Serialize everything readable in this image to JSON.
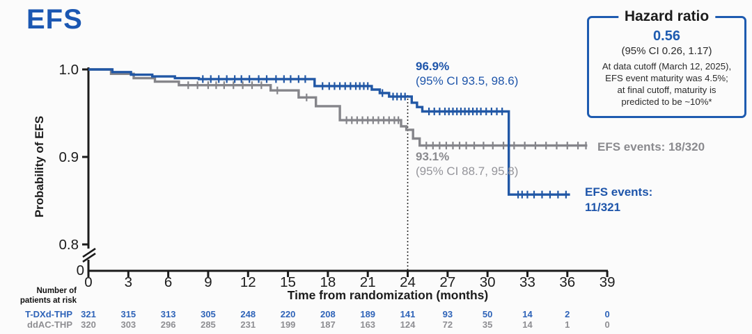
{
  "title": "EFS",
  "hazard_box": {
    "title": "Hazard ratio",
    "value": "0.56",
    "ci": "(95% CI 0.26, 1.17)",
    "note_lines": [
      "At data cutoff (March 12, 2025),",
      "EFS event maturity was 4.5%;",
      "at final cutoff, maturity is",
      "predicted to be ~10%*"
    ]
  },
  "chart_data": {
    "type": "line",
    "subtype": "kaplan-meier-step",
    "title": "EFS",
    "xlabel": "Time from randomization (months)",
    "ylabel": "Probability of EFS",
    "x_ticks": [
      0,
      3,
      6,
      9,
      12,
      15,
      18,
      21,
      24,
      27,
      30,
      33,
      36,
      39
    ],
    "y_ticks": [
      1.0,
      0.9,
      0.8
    ],
    "y_tick_labels": [
      "1.0",
      "0.9",
      "0.8"
    ],
    "y_axis_break_label": "0",
    "ylim_shown": [
      0.8,
      1.0
    ],
    "xlim": [
      0,
      39
    ],
    "grid": false,
    "reference_line_month": 24,
    "series": [
      {
        "name": "T-DXd-THP",
        "color": "#2157a5",
        "landmark_value": "96.9%",
        "landmark_ci": "(95% CI 93.5, 98.6)",
        "events_label_line1": "EFS events:",
        "events_label_line2": "11/321",
        "steps": [
          [
            0,
            1.0
          ],
          [
            1.8,
            1.0
          ],
          [
            1.8,
            0.997
          ],
          [
            3.2,
            0.997
          ],
          [
            3.2,
            0.994
          ],
          [
            4.8,
            0.994
          ],
          [
            4.8,
            0.992
          ],
          [
            6.5,
            0.992
          ],
          [
            6.5,
            0.99
          ],
          [
            8.3,
            0.99
          ],
          [
            8.3,
            0.989
          ],
          [
            17.0,
            0.989
          ],
          [
            17.0,
            0.981
          ],
          [
            21.3,
            0.981
          ],
          [
            21.3,
            0.977
          ],
          [
            21.9,
            0.977
          ],
          [
            21.9,
            0.973
          ],
          [
            22.6,
            0.973
          ],
          [
            22.6,
            0.969
          ],
          [
            24.3,
            0.969
          ],
          [
            24.3,
            0.962
          ],
          [
            24.7,
            0.962
          ],
          [
            24.7,
            0.957
          ],
          [
            25.1,
            0.957
          ],
          [
            25.1,
            0.952
          ],
          [
            31.6,
            0.952
          ],
          [
            31.6,
            0.857
          ],
          [
            36.2,
            0.857
          ]
        ],
        "censor_months": [
          8.6,
          9.2,
          9.8,
          10.4,
          11.0,
          11.5,
          12.1,
          12.8,
          13.4,
          14.1,
          14.7,
          15.2,
          15.8,
          16.3,
          17.6,
          18.1,
          18.5,
          18.9,
          19.3,
          19.7,
          20.1,
          20.4,
          20.7,
          21.0,
          22.1,
          22.9,
          23.2,
          23.5,
          23.8,
          25.6,
          26.0,
          26.4,
          26.8,
          27.1,
          27.4,
          27.7,
          28.0,
          28.3,
          28.6,
          28.9,
          29.2,
          29.5,
          29.9,
          30.3,
          30.7,
          31.1,
          32.3,
          32.6,
          33.0,
          33.5,
          34.1,
          34.7,
          35.3,
          35.9
        ]
      },
      {
        "name": "ddAC-THP",
        "color": "#85858a",
        "landmark_value": "93.1%",
        "landmark_ci": "(95% CI 88.7, 95.8)",
        "events_label": "EFS events: 18/320",
        "steps": [
          [
            0,
            1.0
          ],
          [
            1.7,
            1.0
          ],
          [
            1.7,
            0.995
          ],
          [
            3.4,
            0.995
          ],
          [
            3.4,
            0.99
          ],
          [
            5.0,
            0.99
          ],
          [
            5.0,
            0.986
          ],
          [
            6.8,
            0.986
          ],
          [
            6.8,
            0.982
          ],
          [
            13.7,
            0.982
          ],
          [
            13.7,
            0.976
          ],
          [
            15.8,
            0.976
          ],
          [
            15.8,
            0.968
          ],
          [
            17.1,
            0.968
          ],
          [
            17.1,
            0.958
          ],
          [
            18.9,
            0.958
          ],
          [
            18.9,
            0.942
          ],
          [
            23.5,
            0.942
          ],
          [
            23.5,
            0.935
          ],
          [
            23.9,
            0.935
          ],
          [
            23.9,
            0.931
          ],
          [
            24.4,
            0.931
          ],
          [
            24.4,
            0.921
          ],
          [
            24.9,
            0.921
          ],
          [
            24.9,
            0.913
          ],
          [
            37.5,
            0.913
          ]
        ],
        "censor_months": [
          7.5,
          8.2,
          9.0,
          9.6,
          10.2,
          10.9,
          11.6,
          12.3,
          13.0,
          14.2,
          16.4,
          19.4,
          19.8,
          20.2,
          20.6,
          21.0,
          21.4,
          21.8,
          22.2,
          22.6,
          23.0,
          23.3,
          25.4,
          25.9,
          26.4,
          26.9,
          27.4,
          27.9,
          28.4,
          29.0,
          29.7,
          30.4,
          31.2,
          32.0,
          32.8,
          33.6,
          34.4,
          35.2,
          36.0,
          36.8,
          37.4
        ]
      }
    ]
  },
  "risk_table": {
    "header_line1": "Number of",
    "header_line2": "patients at risk",
    "months": [
      0,
      3,
      6,
      9,
      12,
      15,
      18,
      21,
      24,
      27,
      30,
      33,
      36,
      39
    ],
    "rows": [
      {
        "name": "T-DXd-THP",
        "color": "#2e63b8",
        "values": [
          "321",
          "315",
          "313",
          "305",
          "248",
          "220",
          "208",
          "189",
          "141",
          "93",
          "50",
          "14",
          "2",
          "0"
        ]
      },
      {
        "name": "ddAC-THP",
        "color": "#8e8e92",
        "values": [
          "320",
          "303",
          "296",
          "285",
          "231",
          "199",
          "187",
          "163",
          "124",
          "72",
          "35",
          "14",
          "1",
          "0"
        ]
      }
    ]
  },
  "colors": {
    "accent_blue": "#1e55aa",
    "curve_blue": "#2157a5",
    "curve_gray": "#85858a",
    "axis": "#1b1b1b"
  }
}
